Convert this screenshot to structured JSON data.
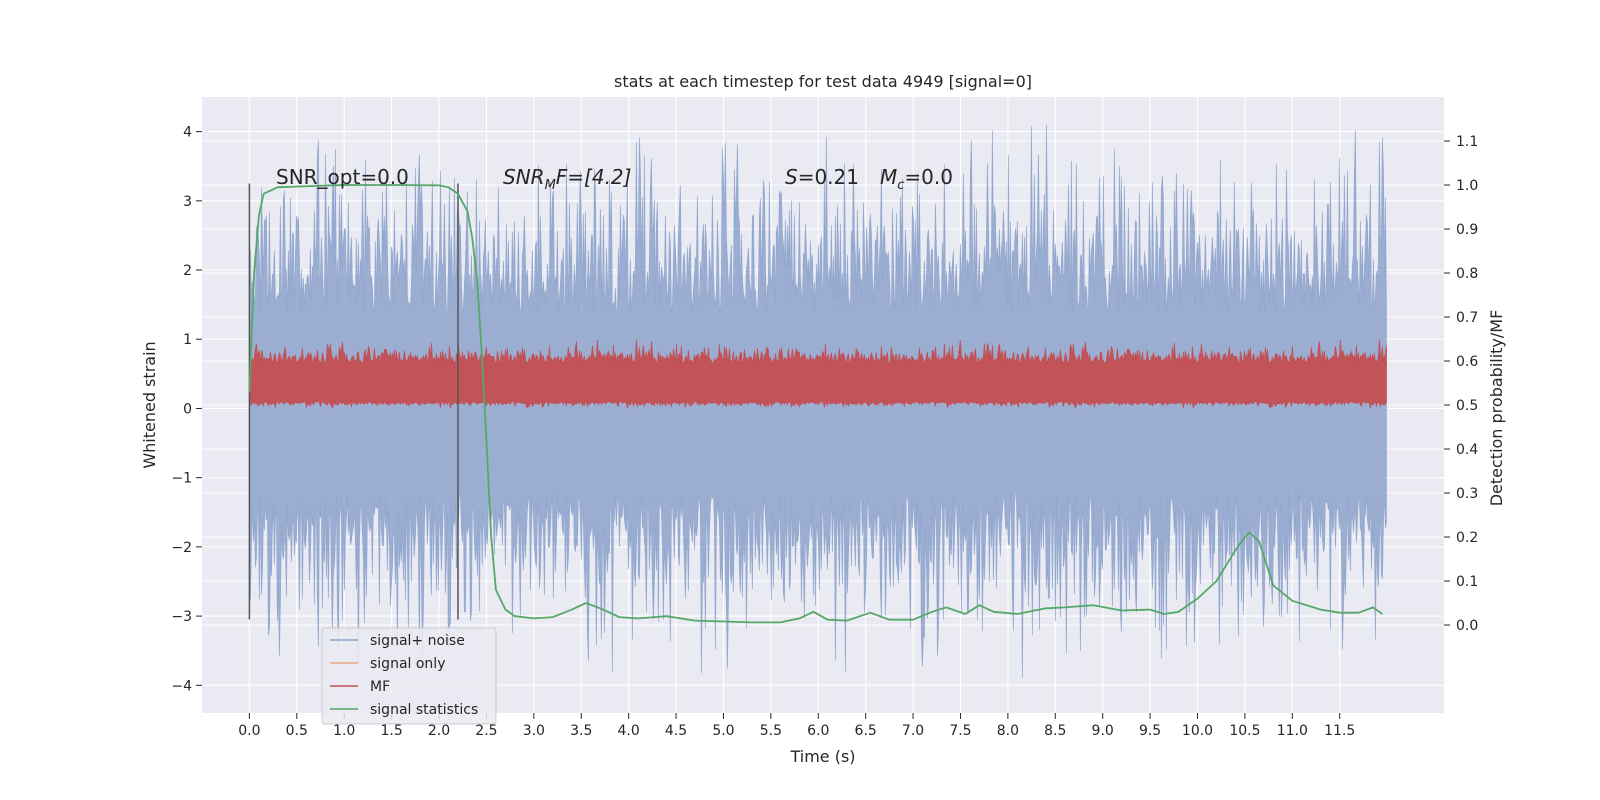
{
  "chart_data": {
    "type": "line",
    "title": "stats at each timestep for test data 4949 [signal=0]",
    "xlabel": "Time (s)",
    "ylabel_left": "Whitened strain",
    "ylabel_right": "Detection probability/MF",
    "xlim": [
      -0.5,
      12.6
    ],
    "ylim_left": [
      -4.4,
      4.5
    ],
    "ylim_right": [
      -0.2,
      1.2
    ],
    "x_ticks": [
      "0.0",
      "0.5",
      "1.0",
      "1.5",
      "2.0",
      "2.5",
      "3.0",
      "3.5",
      "4.0",
      "4.5",
      "5.0",
      "5.5",
      "6.0",
      "6.5",
      "7.0",
      "7.5",
      "8.0",
      "8.5",
      "9.0",
      "9.5",
      "10.0",
      "10.5",
      "11.0",
      "11.5"
    ],
    "y_ticks_left": [
      "4",
      "3",
      "2",
      "1",
      "0",
      "−1",
      "−2",
      "−3",
      "−4"
    ],
    "y_ticks_right": [
      "1.1",
      "1.0",
      "0.9",
      "0.8",
      "0.7",
      "0.6",
      "0.5",
      "0.4",
      "0.3",
      "0.2",
      "0.1",
      "0.0"
    ],
    "grid": true,
    "legend_position": "lower-left",
    "colors": {
      "background": "#eaeaf2",
      "grid": "#ffffff",
      "noise": "#8da3cc",
      "signal_only": "#e8a888",
      "mf": "#c44e52",
      "stats": "#55a868",
      "vline": "#555555"
    },
    "series": [
      {
        "name": "signal+ noise",
        "axis": "left",
        "band_core": [
          -1.2,
          1.35
        ],
        "range_observed": [
          -3.9,
          4.1
        ],
        "x_range": [
          0.0,
          12.0
        ]
      },
      {
        "name": "signal only",
        "axis": "left",
        "values": []
      },
      {
        "name": "MF",
        "axis": "left",
        "band_core": [
          0.1,
          0.65
        ],
        "range_observed": [
          0.0,
          1.0
        ],
        "x_range": [
          0.0,
          12.0
        ]
      },
      {
        "name": "signal statistics",
        "axis": "right",
        "x": [
          0.0,
          0.05,
          0.1,
          0.15,
          0.3,
          1.0,
          1.5,
          2.0,
          2.1,
          2.2,
          2.3,
          2.35,
          2.4,
          2.45,
          2.5,
          2.55,
          2.6,
          2.7,
          2.8,
          3.0,
          3.2,
          3.4,
          3.55,
          3.7,
          3.9,
          4.1,
          4.4,
          4.7,
          5.0,
          5.3,
          5.6,
          5.8,
          5.95,
          6.1,
          6.3,
          6.55,
          6.75,
          7.0,
          7.2,
          7.35,
          7.55,
          7.7,
          7.85,
          8.1,
          8.4,
          8.6,
          8.9,
          9.2,
          9.5,
          9.65,
          9.8,
          10.0,
          10.2,
          10.4,
          10.5,
          10.55,
          10.65,
          10.8,
          11.0,
          11.3,
          11.5,
          11.7,
          11.85,
          11.95
        ],
        "values": [
          0.53,
          0.8,
          0.93,
          0.98,
          0.995,
          1.0,
          1.0,
          0.999,
          0.995,
          0.98,
          0.94,
          0.88,
          0.79,
          0.62,
          0.42,
          0.2,
          0.08,
          0.035,
          0.02,
          0.015,
          0.018,
          0.035,
          0.05,
          0.038,
          0.018,
          0.015,
          0.02,
          0.01,
          0.008,
          0.006,
          0.006,
          0.015,
          0.03,
          0.012,
          0.01,
          0.028,
          0.012,
          0.012,
          0.03,
          0.04,
          0.025,
          0.045,
          0.03,
          0.025,
          0.038,
          0.04,
          0.045,
          0.033,
          0.035,
          0.025,
          0.03,
          0.06,
          0.1,
          0.17,
          0.2,
          0.21,
          0.19,
          0.09,
          0.055,
          0.035,
          0.028,
          0.028,
          0.04,
          0.025
        ]
      }
    ],
    "vlines": [
      0.0,
      2.2
    ],
    "annotations": {
      "snr_opt": "SNR_opt=0.0",
      "snr_mf_prefix": "SNR",
      "snr_mf_sub": "M",
      "snr_mf_suffix": "F=[4.2]",
      "s_symbol": "S",
      "s_value": "=0.21",
      "mc_symbol": "M",
      "mc_sub": "c",
      "mc_value": "=0.0"
    },
    "legend": [
      "signal+ noise",
      "signal only",
      "MF",
      "signal statistics"
    ]
  }
}
